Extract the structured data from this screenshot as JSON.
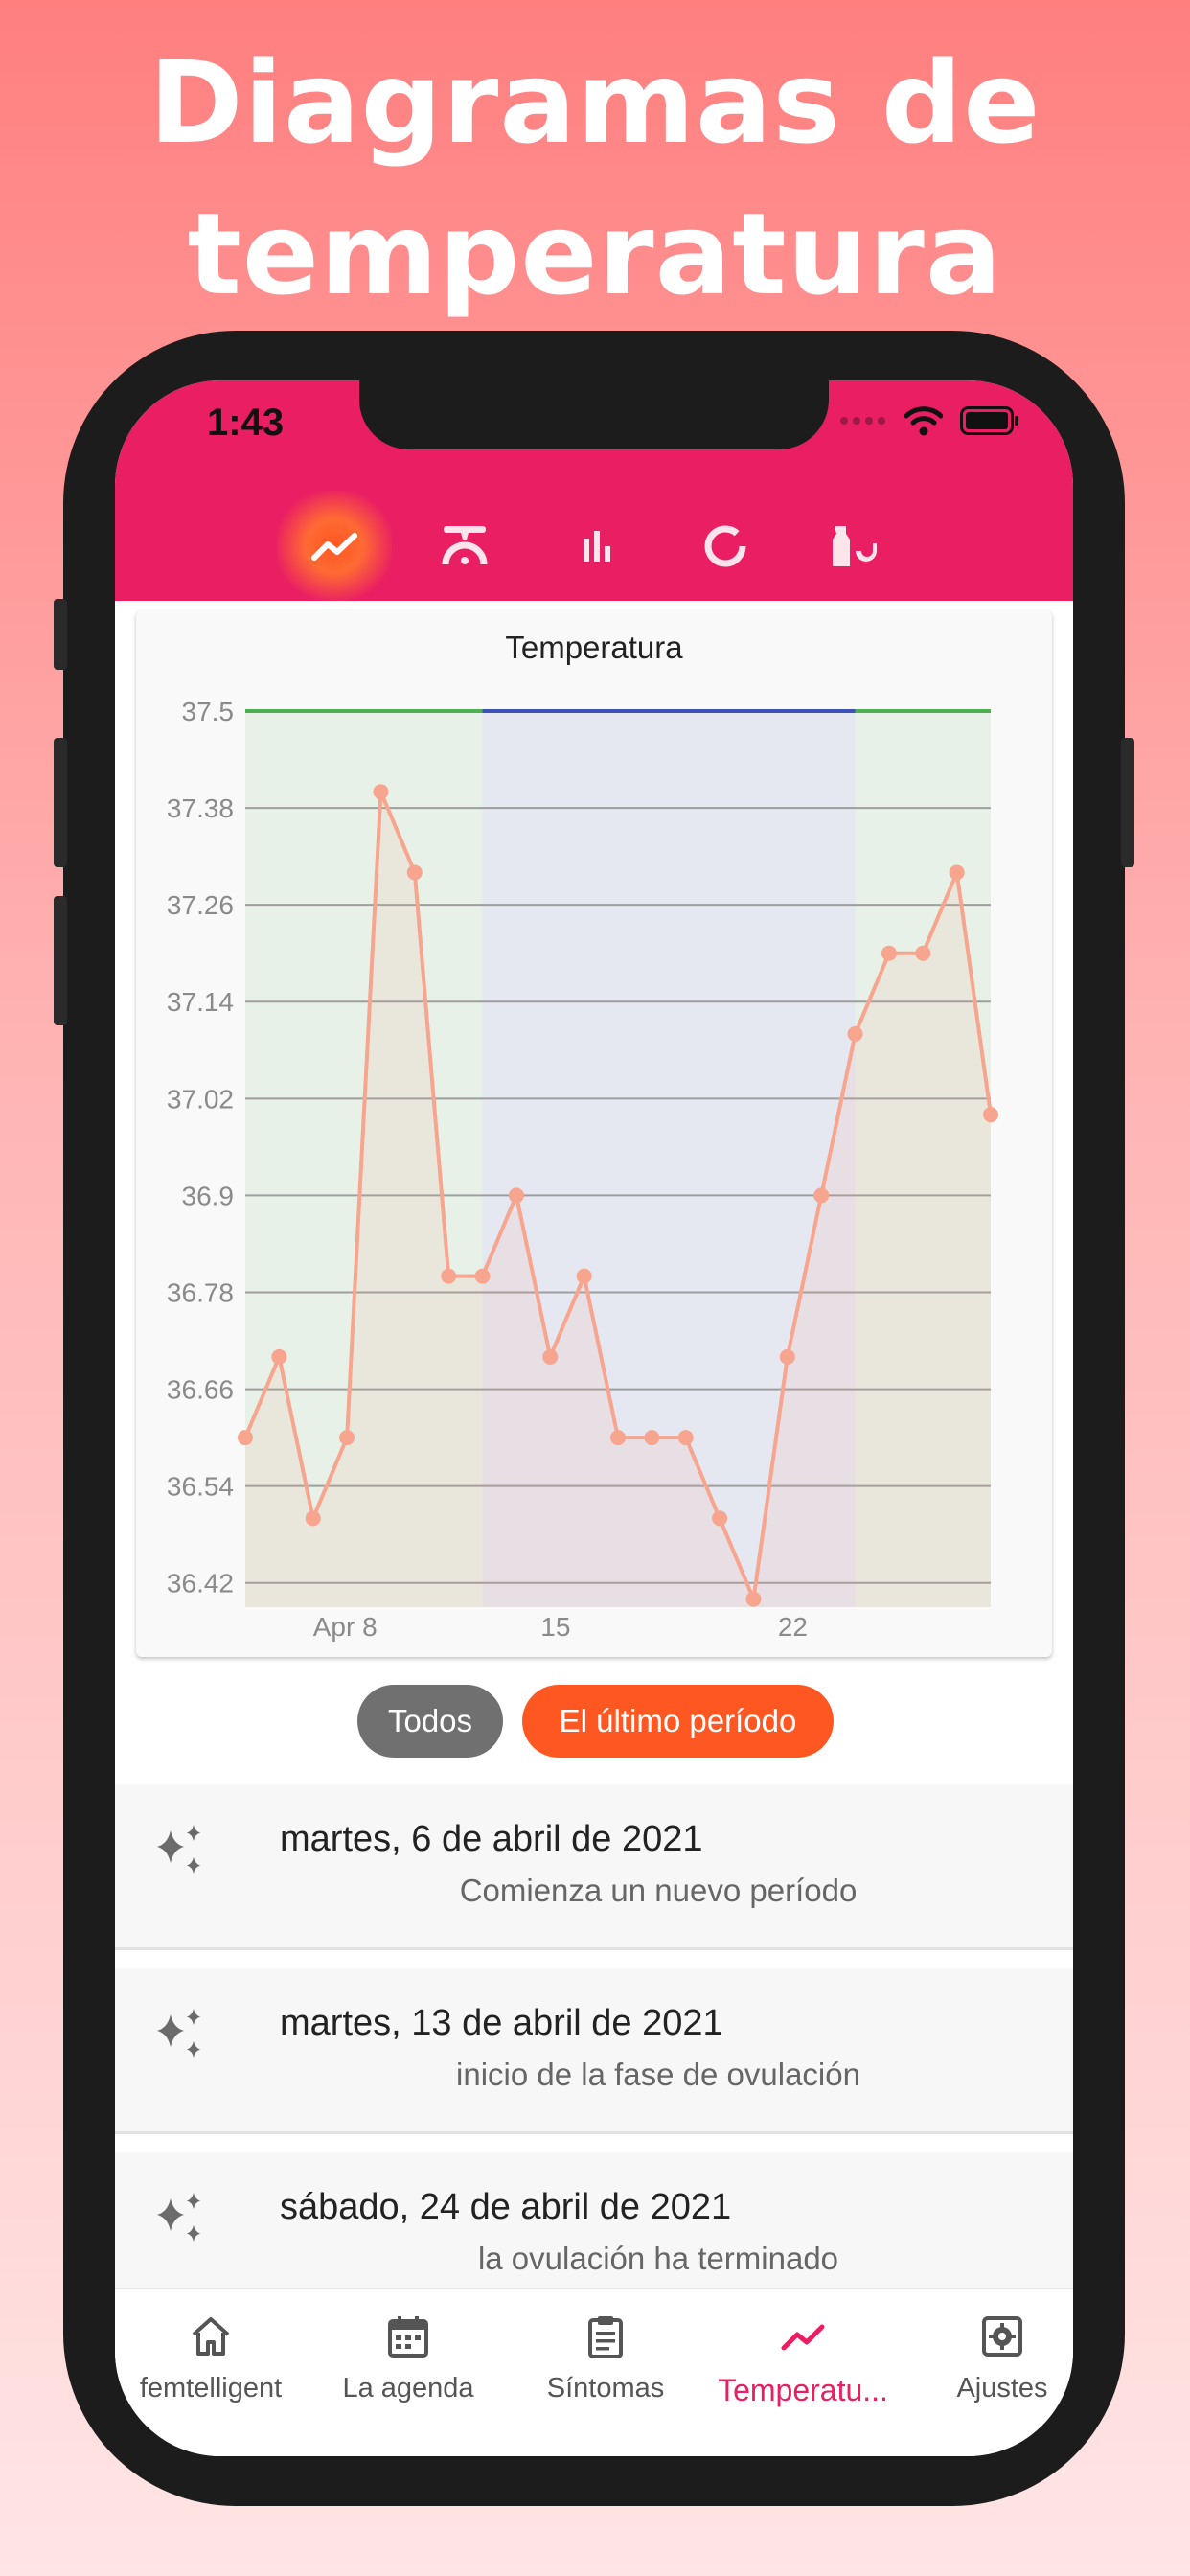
{
  "headline": {
    "line1": "Diagramas de",
    "line2": "temperatura"
  },
  "status": {
    "time": "1:43"
  },
  "colors": {
    "brand": "#e91e63",
    "accent": "#ff5722",
    "line": "#f7a58e",
    "green": "#4caf50",
    "blue": "#3f51b5"
  },
  "top_tabs": [
    {
      "icon": "trending-up-icon",
      "active": true
    },
    {
      "icon": "thermometer-gauge-icon",
      "active": false
    },
    {
      "icon": "bar-chart-icon",
      "active": false
    },
    {
      "icon": "donut-chart-icon",
      "active": false
    },
    {
      "icon": "test-tube-icon",
      "active": false
    }
  ],
  "chart_data": {
    "type": "line",
    "title": "Temperatura",
    "y_ticks": [
      "37.5",
      "37.38",
      "37.26",
      "37.14",
      "37.02",
      "36.9",
      "36.78",
      "36.66",
      "36.54",
      "36.42"
    ],
    "ylim": [
      36.39,
      37.5
    ],
    "x_ticks": [
      {
        "label": "Apr 8",
        "day": 8
      },
      {
        "label": "15",
        "day": 15
      },
      {
        "label": "22",
        "day": 22
      }
    ],
    "xlim": [
      6,
      28
    ],
    "phases": [
      {
        "name": "period",
        "from": 6,
        "to": 13,
        "color": "#4caf50"
      },
      {
        "name": "ovulation",
        "from": 13,
        "to": 24,
        "color": "#3f51b5"
      },
      {
        "name": "post-ovulation",
        "from": 24,
        "to": 28,
        "color": "#4caf50"
      }
    ],
    "series": [
      {
        "name": "Temperatura",
        "x": [
          6,
          7,
          8,
          9,
          10,
          11,
          12,
          13,
          14,
          15,
          16,
          17,
          18,
          19,
          20,
          21,
          22,
          23,
          24,
          25,
          26,
          27,
          28
        ],
        "values": [
          36.6,
          36.7,
          36.5,
          36.6,
          37.4,
          37.3,
          36.8,
          36.8,
          36.9,
          36.7,
          36.8,
          36.6,
          36.6,
          36.6,
          36.5,
          36.4,
          36.7,
          36.9,
          37.1,
          37.2,
          37.2,
          37.3,
          37.0
        ]
      }
    ]
  },
  "filters": {
    "all": "Todos",
    "last_period": "El último período"
  },
  "events": [
    {
      "date": "martes, 6 de abril de 2021",
      "desc": "Comienza un nuevo período"
    },
    {
      "date": "martes, 13 de abril de 2021",
      "desc": "inicio de la fase de ovulación"
    },
    {
      "date": "sábado, 24 de abril de 2021",
      "desc": "la ovulación ha terminado"
    }
  ],
  "nav": [
    {
      "label": "femtelligent",
      "icon": "home-icon"
    },
    {
      "label": "La agenda",
      "icon": "calendar-icon"
    },
    {
      "label": "Síntomas",
      "icon": "clipboard-icon"
    },
    {
      "label": "Temperatu...",
      "icon": "trending-up-icon"
    },
    {
      "label": "Ajustes",
      "icon": "settings-icon"
    }
  ]
}
